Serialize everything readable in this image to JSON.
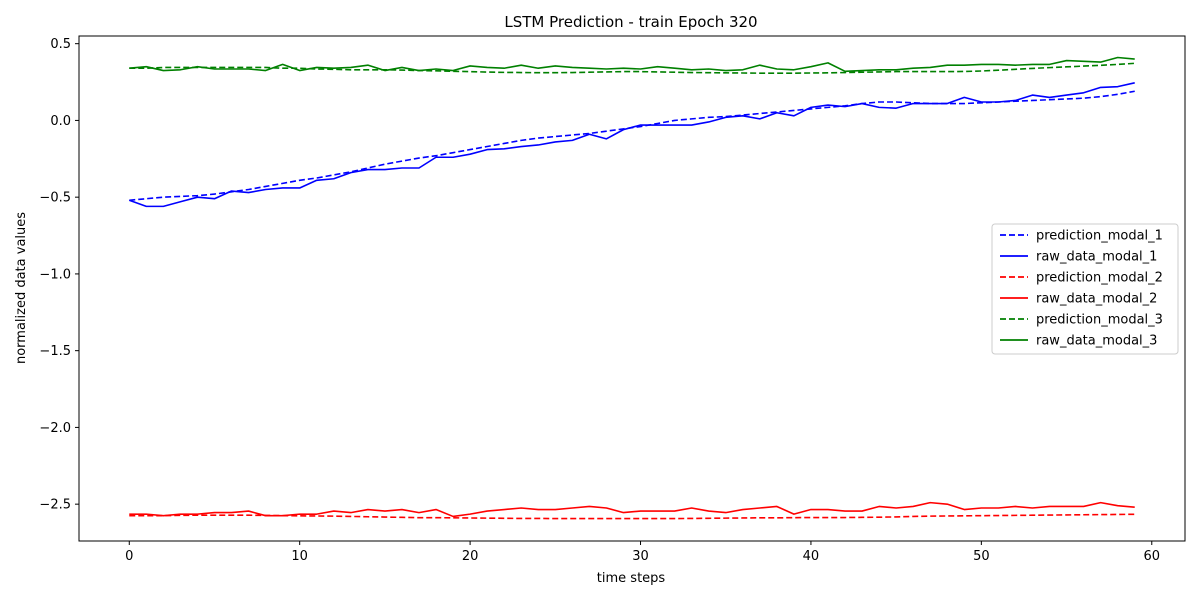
{
  "chart_data": {
    "type": "line",
    "title": "LSTM Prediction - train Epoch 320",
    "xlabel": "time steps",
    "ylabel": "normalized data values",
    "xlim": [
      -2.95,
      61.95
    ],
    "ylim": [
      -2.74,
      0.55
    ],
    "xticks": [
      0,
      10,
      20,
      30,
      40,
      50,
      60
    ],
    "yticks": [
      0.5,
      0.0,
      -0.5,
      -1.0,
      -1.5,
      -2.0,
      -2.5
    ],
    "ytick_labels": [
      "0.5",
      "0.0",
      "−0.5",
      "−1.0",
      "−1.5",
      "−2.0",
      "−2.5"
    ],
    "grid": false,
    "legend_position": "center-right",
    "x": [
      0,
      1,
      2,
      3,
      4,
      5,
      6,
      7,
      8,
      9,
      10,
      11,
      12,
      13,
      14,
      15,
      16,
      17,
      18,
      19,
      20,
      21,
      22,
      23,
      24,
      25,
      26,
      27,
      28,
      29,
      30,
      31,
      32,
      33,
      34,
      35,
      36,
      37,
      38,
      39,
      40,
      41,
      42,
      43,
      44,
      45,
      46,
      47,
      48,
      49,
      50,
      51,
      52,
      53,
      54,
      55,
      56,
      57,
      58,
      59
    ],
    "series": [
      {
        "name": "prediction_modal_1",
        "color": "#0000ff",
        "style": "dashed",
        "values": [
          -0.52,
          -0.51,
          -0.5,
          -0.495,
          -0.49,
          -0.48,
          -0.465,
          -0.45,
          -0.43,
          -0.41,
          -0.39,
          -0.375,
          -0.355,
          -0.335,
          -0.31,
          -0.285,
          -0.265,
          -0.245,
          -0.23,
          -0.21,
          -0.19,
          -0.17,
          -0.15,
          -0.13,
          -0.115,
          -0.105,
          -0.095,
          -0.085,
          -0.07,
          -0.055,
          -0.04,
          -0.02,
          0.0,
          0.01,
          0.02,
          0.025,
          0.035,
          0.045,
          0.055,
          0.065,
          0.075,
          0.085,
          0.095,
          0.11,
          0.12,
          0.12,
          0.115,
          0.11,
          0.11,
          0.11,
          0.115,
          0.12,
          0.125,
          0.13,
          0.135,
          0.14,
          0.145,
          0.155,
          0.17,
          0.19
        ]
      },
      {
        "name": "raw_data_modal_1",
        "color": "#0000ff",
        "style": "solid",
        "values": [
          -0.52,
          -0.56,
          -0.56,
          -0.53,
          -0.5,
          -0.51,
          -0.46,
          -0.47,
          -0.45,
          -0.44,
          -0.44,
          -0.39,
          -0.38,
          -0.34,
          -0.32,
          -0.32,
          -0.31,
          -0.31,
          -0.24,
          -0.24,
          -0.22,
          -0.19,
          -0.185,
          -0.17,
          -0.16,
          -0.14,
          -0.13,
          -0.09,
          -0.12,
          -0.06,
          -0.03,
          -0.03,
          -0.03,
          -0.03,
          -0.01,
          0.02,
          0.03,
          0.01,
          0.05,
          0.03,
          0.085,
          0.1,
          0.09,
          0.11,
          0.085,
          0.08,
          0.11,
          0.11,
          0.11,
          0.15,
          0.12,
          0.12,
          0.13,
          0.165,
          0.15,
          0.165,
          0.18,
          0.215,
          0.22,
          0.245
        ]
      },
      {
        "name": "prediction_modal_2",
        "color": "#ff0000",
        "style": "dashed",
        "values": [
          -2.575,
          -2.575,
          -2.575,
          -2.573,
          -2.572,
          -2.572,
          -2.572,
          -2.572,
          -2.573,
          -2.575,
          -2.576,
          -2.577,
          -2.578,
          -2.58,
          -2.582,
          -2.584,
          -2.586,
          -2.588,
          -2.588,
          -2.589,
          -2.59,
          -2.591,
          -2.592,
          -2.593,
          -2.593,
          -2.594,
          -2.594,
          -2.594,
          -2.594,
          -2.594,
          -2.594,
          -2.594,
          -2.594,
          -2.593,
          -2.592,
          -2.591,
          -2.59,
          -2.589,
          -2.589,
          -2.588,
          -2.587,
          -2.587,
          -2.587,
          -2.586,
          -2.585,
          -2.583,
          -2.58,
          -2.578,
          -2.577,
          -2.576,
          -2.575,
          -2.574,
          -2.573,
          -2.572,
          -2.571,
          -2.57,
          -2.569,
          -2.568,
          -2.567,
          -2.566
        ]
      },
      {
        "name": "raw_data_modal_2",
        "color": "#ff0000",
        "style": "solid",
        "values": [
          -2.565,
          -2.565,
          -2.575,
          -2.565,
          -2.565,
          -2.555,
          -2.555,
          -2.545,
          -2.575,
          -2.575,
          -2.565,
          -2.565,
          -2.545,
          -2.555,
          -2.535,
          -2.545,
          -2.535,
          -2.555,
          -2.535,
          -2.58,
          -2.565,
          -2.545,
          -2.535,
          -2.525,
          -2.535,
          -2.535,
          -2.525,
          -2.515,
          -2.525,
          -2.555,
          -2.545,
          -2.545,
          -2.545,
          -2.525,
          -2.545,
          -2.555,
          -2.535,
          -2.525,
          -2.515,
          -2.565,
          -2.535,
          -2.535,
          -2.545,
          -2.545,
          -2.515,
          -2.525,
          -2.515,
          -2.49,
          -2.5,
          -2.535,
          -2.525,
          -2.525,
          -2.515,
          -2.525,
          -2.515,
          -2.515,
          -2.515,
          -2.49,
          -2.51,
          -2.52
        ]
      },
      {
        "name": "prediction_modal_3",
        "color": "#008000",
        "style": "dashed",
        "values": [
          0.34,
          0.34,
          0.345,
          0.345,
          0.345,
          0.345,
          0.345,
          0.345,
          0.345,
          0.34,
          0.34,
          0.335,
          0.333,
          0.33,
          0.33,
          0.33,
          0.328,
          0.325,
          0.323,
          0.32,
          0.318,
          0.315,
          0.313,
          0.312,
          0.311,
          0.311,
          0.312,
          0.314,
          0.316,
          0.318,
          0.318,
          0.316,
          0.314,
          0.312,
          0.311,
          0.31,
          0.309,
          0.308,
          0.308,
          0.308,
          0.309,
          0.31,
          0.312,
          0.314,
          0.316,
          0.318,
          0.318,
          0.318,
          0.318,
          0.319,
          0.322,
          0.327,
          0.333,
          0.339,
          0.344,
          0.349,
          0.354,
          0.359,
          0.365,
          0.372
        ]
      },
      {
        "name": "raw_data_modal_3",
        "color": "#008000",
        "style": "solid",
        "values": [
          0.34,
          0.35,
          0.325,
          0.33,
          0.35,
          0.335,
          0.335,
          0.335,
          0.325,
          0.365,
          0.325,
          0.345,
          0.34,
          0.345,
          0.36,
          0.325,
          0.345,
          0.325,
          0.335,
          0.325,
          0.355,
          0.345,
          0.34,
          0.36,
          0.34,
          0.355,
          0.345,
          0.34,
          0.335,
          0.34,
          0.335,
          0.35,
          0.34,
          0.33,
          0.335,
          0.325,
          0.33,
          0.36,
          0.335,
          0.33,
          0.35,
          0.375,
          0.32,
          0.325,
          0.33,
          0.33,
          0.34,
          0.345,
          0.36,
          0.36,
          0.365,
          0.365,
          0.36,
          0.365,
          0.365,
          0.39,
          0.385,
          0.38,
          0.41,
          0.4
        ]
      }
    ]
  }
}
